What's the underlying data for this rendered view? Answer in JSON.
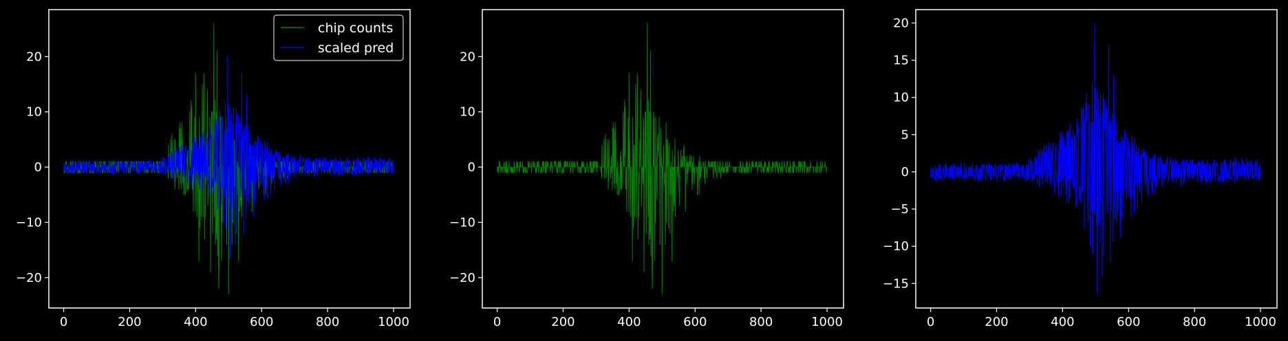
{
  "figure": {
    "background": "#000000",
    "axes_color": "#ffffff",
    "text_color": "#ffffff"
  },
  "chart_data": [
    {
      "type": "line",
      "title": "",
      "xlabel": "",
      "ylabel": "",
      "xlim": [
        -45,
        1050
      ],
      "ylim": [
        -25.5,
        28.5
      ],
      "xticks": [
        0,
        200,
        400,
        600,
        800,
        1000
      ],
      "yticks": [
        -20,
        -10,
        0,
        10,
        20
      ],
      "grid": false,
      "legend": {
        "placement": "top-right",
        "entries": [
          "chip counts",
          "scaled pred"
        ]
      },
      "series": [
        {
          "name": "chip counts",
          "color": "#008000",
          "kind": "chip",
          "x_range": [
            0,
            1000
          ],
          "envelope_upper": [
            [
              0,
              1
            ],
            [
              300,
              1.5
            ],
            [
              330,
              8
            ],
            [
              390,
              13
            ],
            [
              450,
              17
            ],
            [
              480,
              12
            ],
            [
              530,
              6
            ],
            [
              600,
              2
            ],
            [
              680,
              1
            ],
            [
              1000,
              1
            ]
          ],
          "envelope_lower": [
            [
              0,
              -1
            ],
            [
              300,
              -1.5
            ],
            [
              380,
              -6
            ],
            [
              420,
              -13
            ],
            [
              480,
              -17
            ],
            [
              520,
              -14
            ],
            [
              560,
              -10
            ],
            [
              640,
              -3
            ],
            [
              700,
              -1
            ],
            [
              1000,
              -1
            ]
          ],
          "spikes": [
            [
              455,
              26
            ],
            [
              465,
              21
            ],
            [
              425,
              17
            ],
            [
              400,
              17
            ],
            [
              445,
              -19
            ],
            [
              470,
              -22
            ],
            [
              500,
              -23
            ],
            [
              410,
              -17
            ],
            [
              530,
              -17
            ]
          ]
        },
        {
          "name": "scaled pred",
          "color": "#0000ff",
          "kind": "pred",
          "x_range": [
            0,
            1000
          ],
          "baseline_upper": [
            [
              0,
              0.4
            ],
            [
              280,
              0.5
            ],
            [
              330,
              2
            ],
            [
              420,
              3.5
            ],
            [
              500,
              7
            ],
            [
              560,
              4
            ],
            [
              640,
              2
            ],
            [
              700,
              1
            ],
            [
              1000,
              0.7
            ]
          ],
          "baseline_lower": [
            [
              0,
              -0.5
            ],
            [
              300,
              -0.4
            ],
            [
              380,
              0.1
            ],
            [
              440,
              -1.5
            ],
            [
              500,
              -4
            ],
            [
              560,
              -2.5
            ],
            [
              640,
              -1.2
            ],
            [
              700,
              -0.4
            ],
            [
              1000,
              -0.5
            ]
          ],
          "envelope_upper": [
            [
              0,
              1.2
            ],
            [
              280,
              1.2
            ],
            [
              330,
              3
            ],
            [
              420,
              7
            ],
            [
              500,
              13
            ],
            [
              560,
              8
            ],
            [
              640,
              3.5
            ],
            [
              700,
              2
            ],
            [
              1000,
              1.8
            ]
          ],
          "envelope_lower": [
            [
              0,
              -1.2
            ],
            [
              300,
              -1.2
            ],
            [
              400,
              -4
            ],
            [
              460,
              -8
            ],
            [
              500,
              -12
            ],
            [
              560,
              -10
            ],
            [
              640,
              -5
            ],
            [
              700,
              -2
            ],
            [
              1000,
              -1.2
            ]
          ],
          "spikes": [
            [
              497,
              20
            ],
            [
              520,
              15
            ],
            [
              540,
              17
            ],
            [
              555,
              13
            ],
            [
              505,
              -16.5
            ],
            [
              520,
              -14
            ],
            [
              545,
              -12
            ]
          ]
        }
      ]
    },
    {
      "type": "line",
      "title": "",
      "xlabel": "",
      "ylabel": "",
      "xlim": [
        -45,
        1050
      ],
      "ylim": [
        -25.5,
        28.5
      ],
      "xticks": [
        0,
        200,
        400,
        600,
        800,
        1000
      ],
      "yticks": [
        -20,
        -10,
        0,
        10,
        20
      ],
      "grid": false,
      "series": [
        {
          "color": "#008000",
          "kind": "chip",
          "x_range": [
            0,
            1000
          ],
          "envelope_upper": [
            [
              0,
              1
            ],
            [
              300,
              1.5
            ],
            [
              330,
              8
            ],
            [
              390,
              13
            ],
            [
              450,
              17
            ],
            [
              480,
              12
            ],
            [
              530,
              6
            ],
            [
              600,
              2
            ],
            [
              680,
              1
            ],
            [
              1000,
              1
            ]
          ],
          "envelope_lower": [
            [
              0,
              -1
            ],
            [
              300,
              -1.5
            ],
            [
              380,
              -6
            ],
            [
              420,
              -13
            ],
            [
              480,
              -17
            ],
            [
              520,
              -14
            ],
            [
              560,
              -10
            ],
            [
              640,
              -3
            ],
            [
              700,
              -1
            ],
            [
              1000,
              -1
            ]
          ],
          "spikes": [
            [
              455,
              26
            ],
            [
              465,
              21
            ],
            [
              425,
              17
            ],
            [
              400,
              17
            ],
            [
              445,
              -19
            ],
            [
              470,
              -22
            ],
            [
              500,
              -23
            ],
            [
              410,
              -17
            ],
            [
              530,
              -17
            ]
          ]
        }
      ]
    },
    {
      "type": "line",
      "title": "",
      "xlabel": "",
      "ylabel": "",
      "xlim": [
        -45,
        1050
      ],
      "ylim": [
        -18.3,
        21.8
      ],
      "xticks": [
        0,
        200,
        400,
        600,
        800,
        1000
      ],
      "yticks": [
        -15,
        -10,
        -5,
        0,
        5,
        10,
        15,
        20
      ],
      "grid": false,
      "series": [
        {
          "color": "#0000ff",
          "kind": "pred",
          "x_range": [
            0,
            1000
          ],
          "baseline_upper": [
            [
              0,
              0.4
            ],
            [
              280,
              0.5
            ],
            [
              330,
              2
            ],
            [
              420,
              3.5
            ],
            [
              500,
              7
            ],
            [
              560,
              4
            ],
            [
              640,
              2
            ],
            [
              700,
              1
            ],
            [
              1000,
              0.7
            ]
          ],
          "baseline_lower": [
            [
              0,
              -0.5
            ],
            [
              300,
              -0.4
            ],
            [
              380,
              0.1
            ],
            [
              440,
              -1.5
            ],
            [
              500,
              -4
            ],
            [
              560,
              -2.5
            ],
            [
              640,
              -1.2
            ],
            [
              700,
              -0.4
            ],
            [
              1000,
              -0.5
            ]
          ],
          "envelope_upper": [
            [
              0,
              1.2
            ],
            [
              280,
              1.2
            ],
            [
              330,
              3
            ],
            [
              420,
              7
            ],
            [
              500,
              13
            ],
            [
              560,
              8
            ],
            [
              640,
              3.5
            ],
            [
              700,
              2
            ],
            [
              1000,
              1.8
            ]
          ],
          "envelope_lower": [
            [
              0,
              -1.2
            ],
            [
              300,
              -1.2
            ],
            [
              400,
              -4
            ],
            [
              460,
              -8
            ],
            [
              500,
              -12
            ],
            [
              560,
              -10
            ],
            [
              640,
              -5
            ],
            [
              700,
              -2
            ],
            [
              1000,
              -1.2
            ]
          ],
          "spikes": [
            [
              497,
              20
            ],
            [
              520,
              15
            ],
            [
              540,
              17
            ],
            [
              555,
              13
            ],
            [
              505,
              -16.5
            ],
            [
              520,
              -14
            ],
            [
              545,
              -12
            ]
          ]
        }
      ]
    }
  ]
}
